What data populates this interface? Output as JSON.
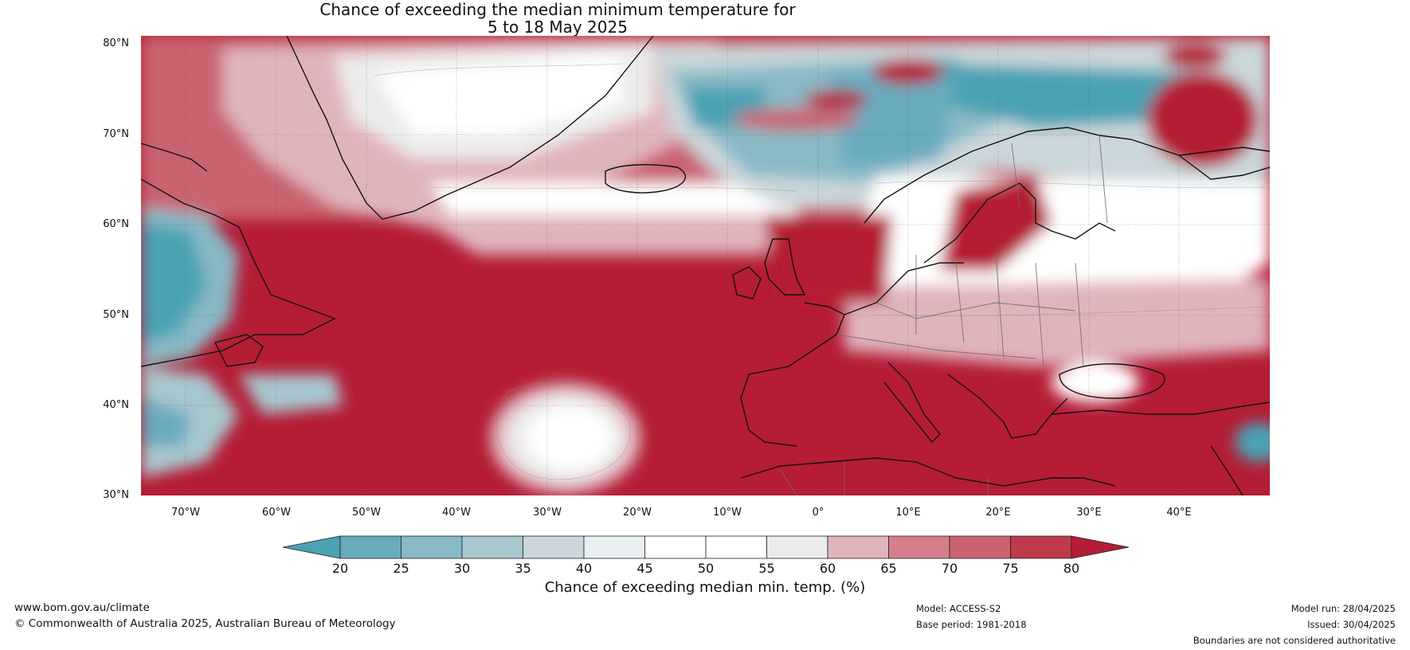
{
  "title": {
    "line1": "Chance of exceeding the median minimum temperature for",
    "line2": "5 to 18 May 2025"
  },
  "map": {
    "lat_labels": [
      "80°N",
      "70°N",
      "60°N",
      "50°N",
      "40°N",
      "30°N"
    ],
    "lon_labels": [
      "70°W",
      "60°W",
      "50°W",
      "40°W",
      "30°W",
      "20°W",
      "10°W",
      "0°",
      "10°E",
      "20°E",
      "30°E",
      "40°E"
    ],
    "extent": {
      "lon_min": -75,
      "lon_max": 50,
      "lat_min": 30,
      "lat_max": 81
    },
    "dominant_pattern": "Warm (red) over the North Atlantic, Mediterranean and Baltic; cool (teal) over Labrador, the Norwegian Sea and the Barents Sea"
  },
  "colorbar": {
    "ticks": [
      "20",
      "25",
      "30",
      "35",
      "40",
      "45",
      "50",
      "55",
      "60",
      "65",
      "70",
      "75",
      "80"
    ],
    "colors": [
      "#4aa2b4",
      "#67abbd",
      "#88b9c5",
      "#a8c7cf",
      "#cbd7db",
      "#e9f0f2",
      "#ffffff",
      "#ffffff",
      "#ecebeb",
      "#e0b4bb",
      "#d57e8a",
      "#c9636f",
      "#bf3a4c",
      "#b51c36"
    ],
    "label": "Chance of exceeding median min. temp. (%)"
  },
  "footer": {
    "website": "www.bom.gov.au/climate",
    "copyright": "© Commonwealth of Australia 2025, Australian Bureau of Meteorology",
    "model": "Model: ACCESS-S2",
    "base_period": "Base period: 1981-2018",
    "model_run": "Model run: 28/04/2025",
    "issued": "Issued: 30/04/2025",
    "disclaimer": "Boundaries are not considered authoritative"
  }
}
